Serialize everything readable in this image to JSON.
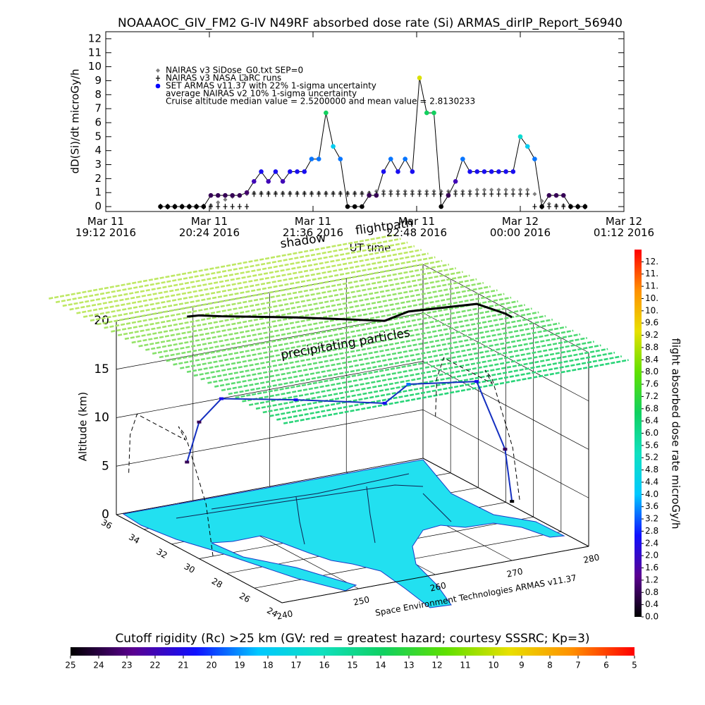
{
  "chart_data": [
    {
      "type": "line",
      "title": "NOAAAOC_GIV_FM2 G-IV   N49RF  absorbed dose rate (Si) ARMAS_dirIP_Report_56940",
      "ylabel": "dD(Si)/dt microGy/h",
      "xlabel": "UT time",
      "x": [
        "2016-03-11T19:50",
        "2016-03-11T19:55",
        "2016-03-11T20:00",
        "2016-03-11T20:05",
        "2016-03-11T20:10",
        "2016-03-11T20:15",
        "2016-03-11T20:20",
        "2016-03-11T20:25",
        "2016-03-11T20:30",
        "2016-03-11T20:35",
        "2016-03-11T20:40",
        "2016-03-11T20:45",
        "2016-03-11T20:50",
        "2016-03-11T20:55",
        "2016-03-11T21:00",
        "2016-03-11T21:05",
        "2016-03-11T21:10",
        "2016-03-11T21:15",
        "2016-03-11T21:20",
        "2016-03-11T21:25",
        "2016-03-11T21:30",
        "2016-03-11T21:35",
        "2016-03-11T21:40",
        "2016-03-11T21:45",
        "2016-03-11T21:50",
        "2016-03-11T21:55",
        "2016-03-11T22:00",
        "2016-03-11T22:05",
        "2016-03-11T22:10",
        "2016-03-11T22:15",
        "2016-03-11T22:20",
        "2016-03-11T22:25",
        "2016-03-11T22:30",
        "2016-03-11T22:35",
        "2016-03-11T22:40",
        "2016-03-11T22:45",
        "2016-03-11T22:50",
        "2016-03-11T22:55",
        "2016-03-11T23:00",
        "2016-03-11T23:05",
        "2016-03-11T23:10",
        "2016-03-11T23:15",
        "2016-03-11T23:20",
        "2016-03-11T23:25",
        "2016-03-11T23:30",
        "2016-03-11T23:35",
        "2016-03-11T23:40",
        "2016-03-11T23:45",
        "2016-03-11T23:50",
        "2016-03-11T23:55",
        "2016-03-12T00:00",
        "2016-03-12T00:05",
        "2016-03-12T00:10",
        "2016-03-12T00:15",
        "2016-03-12T00:20",
        "2016-03-12T00:25",
        "2016-03-12T00:30",
        "2016-03-12T00:35",
        "2016-03-12T00:40",
        "2016-03-12T00:45"
      ],
      "series": [
        {
          "name": "NAIRAS v3 SiDose_G0.txt SEP=0",
          "color": "#7f7f7f",
          "marker": "diamond",
          "values": [
            0,
            0,
            0,
            0,
            0,
            0,
            0,
            0.1,
            0.3,
            0.5,
            0.7,
            0.8,
            0.9,
            1,
            1,
            1,
            1,
            1,
            1,
            1,
            1,
            1,
            1,
            1,
            1,
            1,
            1,
            1,
            1,
            1,
            1.1,
            1.1,
            1.1,
            1.1,
            1.1,
            1.1,
            1.1,
            1.1,
            1.1,
            1.1,
            1.1,
            1.1,
            1.1,
            1.1,
            1.2,
            1.2,
            1.2,
            1.2,
            1.2,
            1.2,
            1.2,
            1.2,
            0.9,
            0.4,
            0.2,
            0.1,
            0.1,
            0,
            0,
            0
          ]
        },
        {
          "name": "NAIRAS v3 NASA LaRC runs",
          "color": "#000000",
          "marker": "plus",
          "values": [
            0,
            0,
            0,
            0,
            0,
            0,
            0,
            0,
            0,
            0,
            0,
            0,
            0,
            0.9,
            0.9,
            0.9,
            0.9,
            0.9,
            0.9,
            0.9,
            0.9,
            0.9,
            0.9,
            0.9,
            0.9,
            0.9,
            0.9,
            0.9,
            0.9,
            0.9,
            0.9,
            0.9,
            0.9,
            0.9,
            0.9,
            0.9,
            0.9,
            0.9,
            0.9,
            0.9,
            0.9,
            0.9,
            0.9,
            0.9,
            0.9,
            0.9,
            0.9,
            0.9,
            0.9,
            0.9,
            0.9,
            0.9,
            0,
            0,
            0,
            0,
            0,
            0,
            0,
            0
          ]
        },
        {
          "name": "SET ARMAS v11.37 with 22% 1-sigma uncertainty",
          "color": "#0000ff",
          "marker": "circle",
          "color_by_value": true,
          "line": true,
          "values": [
            0,
            0,
            0,
            0,
            0,
            0,
            0,
            0.8,
            0.8,
            0.8,
            0.8,
            0.8,
            1.0,
            1.8,
            2.5,
            1.8,
            2.5,
            1.8,
            2.5,
            2.5,
            2.5,
            3.4,
            3.4,
            6.7,
            4.3,
            3.4,
            0,
            0,
            0,
            0.8,
            0.8,
            2.5,
            3.4,
            2.5,
            3.4,
            2.5,
            9.2,
            6.7,
            6.7,
            0,
            0.8,
            1.8,
            3.4,
            2.5,
            2.5,
            2.5,
            2.5,
            2.5,
            2.5,
            2.5,
            5.0,
            4.3,
            3.4,
            0,
            0.8,
            0.8,
            0.8,
            0,
            0,
            0
          ]
        }
      ],
      "annotations": [
        "average NAIRAS v2 10% 1-sigma uncertainty",
        "Cruise altitude median value = 2.5200000 and mean value = 2.8130233"
      ],
      "legend": "upper left",
      "xlim": [
        "2016-03-11T19:12",
        "2016-03-12T01:12"
      ],
      "xticks": [
        {
          "value": "2016-03-11T19:12",
          "label": "Mar 11\n19:12 2016"
        },
        {
          "value": "2016-03-11T20:24",
          "label": "Mar 11\n20:24 2016"
        },
        {
          "value": "2016-03-11T21:36",
          "label": "Mar 11\n21:36 2016"
        },
        {
          "value": "2016-03-11T22:48",
          "label": "Mar 11\n22:48 2016"
        },
        {
          "value": "2016-03-12T00:00",
          "label": "Mar 12\n00:00 2016"
        },
        {
          "value": "2016-03-12T01:12",
          "label": "Mar 12\n01:12 2016"
        }
      ],
      "ylim": [
        -0.35,
        12.5
      ],
      "yticks": [
        0,
        1,
        2,
        3,
        4,
        5,
        6,
        7,
        8,
        9,
        10,
        11,
        12
      ]
    },
    {
      "type": "scatter3d",
      "annotations": [
        "shadow",
        "flightpath",
        "precipitating particles",
        "Space Environment Technologies ARMAS v11.37"
      ],
      "zlabel": "Altitude (km)",
      "xlim": [
        240,
        280
      ],
      "xticks": [
        240,
        250,
        260,
        270,
        280
      ],
      "ylim": [
        24,
        36
      ],
      "yticks": [
        24,
        26,
        28,
        30,
        32,
        34,
        36
      ],
      "zlim": [
        0,
        20
      ],
      "zticks": [
        0,
        5,
        10,
        15,
        20
      ],
      "x": [
        247.6,
        249,
        251,
        258,
        266,
        270,
        278,
        279,
        279
      ],
      "y": [
        35.1,
        35,
        34.5,
        33,
        31,
        31.5,
        31,
        29.5,
        29
      ],
      "z": [
        5,
        9,
        11.5,
        11.5,
        11.5,
        12.5,
        12,
        6,
        1
      ],
      "values": [
        0.8,
        0.8,
        2.5,
        2.5,
        2.5,
        3.4,
        2.5,
        0.8,
        0
      ],
      "colorbar": {
        "label": "flight absorbed dose rate microGy/h",
        "lim": [
          0,
          12
        ],
        "colormap": [
          "#000000",
          "#5a0090",
          "#1010ff",
          "#00c8ff",
          "#10e0c0",
          "#10d060",
          "#60e000",
          "#e8e000",
          "#ff9000",
          "#ff0000"
        ],
        "ticks": [
          {
            "value": 0,
            "label": "0.0"
          },
          0.4,
          0.8,
          1.2,
          1.6,
          {
            "value": 2,
            "label": "2.0"
          },
          2.4,
          2.8,
          3.2,
          3.6,
          {
            "value": 4,
            "label": "4.0"
          },
          4.4,
          4.8,
          5.2,
          5.6,
          {
            "value": 6,
            "label": "6.0"
          },
          6.4,
          6.8,
          7.2,
          7.6,
          {
            "value": 8,
            "label": "8.0"
          },
          8.4,
          8.8,
          9.2,
          9.6,
          {
            "value": 10,
            "label": "10."
          },
          {
            "value": 10.4,
            "label": "10."
          },
          {
            "value": 10.8,
            "label": "11."
          },
          {
            "value": 11.2,
            "label": "11."
          },
          {
            "value": 11.6,
            "label": "12."
          }
        ]
      }
    },
    {
      "type": "colorbar",
      "title": "Cutoff rigidity (Rc) >25 km (GV: red = greatest hazard; courtesy SSSRC; Kp=3)",
      "lim": [
        25,
        5
      ],
      "ticks": [
        25,
        24,
        23,
        22,
        21,
        20,
        19,
        18,
        17,
        16,
        15,
        14,
        13,
        12,
        11,
        10,
        9,
        8,
        7,
        6,
        5
      ]
    }
  ]
}
